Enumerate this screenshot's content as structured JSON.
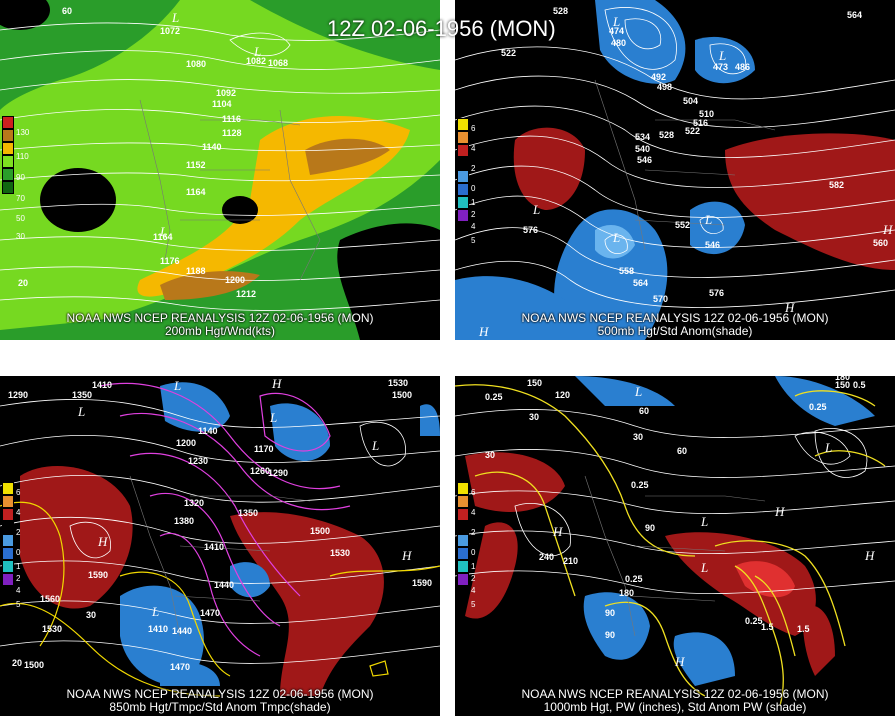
{
  "title": "12Z 02-06-1956 (MON)",
  "panels": [
    {
      "id": "p1",
      "caption1": "NOAA NWS NCEP REANALYSIS 12Z 02-06-1956 (MON)",
      "caption2": "200mb Hgt/Wnd(kts)",
      "legend": [
        "130",
        "110",
        "90",
        "70",
        "50",
        "30"
      ],
      "contour_labels": [
        "1072",
        "1080",
        "1082",
        "1068",
        "1092",
        "1104",
        "1116",
        "1128",
        "1140",
        "1152",
        "1164",
        "1164",
        "1176",
        "1188",
        "1200",
        "1212",
        "60",
        "20"
      ],
      "highs_lows": [
        "L",
        "L",
        "L"
      ],
      "colors": {
        "wind_low": "#2a9d2a",
        "wind_mid": "#7ee020",
        "wind_high": "#f5b800",
        "wind_max": "#b8781a"
      }
    },
    {
      "id": "p2",
      "caption1": "NOAA NWS NCEP REANALYSIS 12Z 02-06-1956 (MON)",
      "caption2": "500mb Hgt/Std Anom(shade)",
      "legend": [
        "6",
        "4",
        "2",
        "0",
        "1",
        "2",
        "4",
        "5"
      ],
      "contour_labels": [
        "528",
        "522",
        "480",
        "474",
        "492",
        "498",
        "473",
        "486",
        "504",
        "510",
        "516",
        "522",
        "528",
        "534",
        "540",
        "546",
        "552",
        "546",
        "558",
        "564",
        "570",
        "576",
        "576",
        "582",
        "564",
        "560"
      ],
      "highs_lows": [
        "L",
        "L",
        "L",
        "L",
        "L",
        "H",
        "H",
        "H"
      ],
      "colors": {
        "pos": "#a01818",
        "neg": "#2a7fd0",
        "neg_light": "#6ab4ee"
      }
    },
    {
      "id": "p3",
      "caption1": "NOAA NWS NCEP REANALYSIS 12Z 02-06-1956 (MON)",
      "caption2": "850mb Hgt/Tmpc/Std Anom Tmpc(shade)",
      "legend": [
        "6",
        "4",
        "2",
        "0",
        "1",
        "2",
        "4",
        "5"
      ],
      "contour_labels": [
        "1410",
        "1290",
        "1350",
        "1530",
        "1500",
        "1140",
        "1200",
        "1230",
        "1170",
        "1260",
        "1290",
        "1320",
        "1380",
        "1350",
        "1410",
        "1500",
        "1530",
        "1590",
        "1560",
        "1530",
        "1440",
        "1470",
        "1500",
        "1470",
        "1440",
        "1410",
        "1590",
        "30",
        "20"
      ],
      "highs_lows": [
        "L",
        "L",
        "L",
        "L",
        "L",
        "H",
        "H",
        "H"
      ],
      "colors": {
        "temp_pos": "#a01818",
        "temp_neg": "#2a7fd0",
        "isotherm_cold": "#e040e0",
        "isotherm_warm": "#f0d800"
      }
    },
    {
      "id": "p4",
      "caption1": "NOAA NWS NCEP REANALYSIS 12Z 02-06-1956 (MON)",
      "caption2": "1000mb Hgt, PW (inches), Std Anom PW (shade)",
      "legend": [
        "6",
        "4",
        "2",
        "0",
        "1",
        "2",
        "4",
        "5"
      ],
      "contour_labels": [
        "150",
        "180",
        "150",
        "0.25",
        "0.5",
        "0.25",
        "120",
        "30",
        "60",
        "30",
        "30",
        "60",
        "0.25",
        "0.25",
        "240",
        "210",
        "180",
        "90",
        "90",
        "90",
        "0.25",
        "1.5",
        "1.5"
      ],
      "highs_lows": [
        "L",
        "L",
        "L",
        "L",
        "H",
        "H",
        "H",
        "H"
      ],
      "colors": {
        "pw_pos": "#a01818",
        "pw_neg": "#2a7fd0",
        "pw_line": "#f0e020"
      }
    }
  ]
}
